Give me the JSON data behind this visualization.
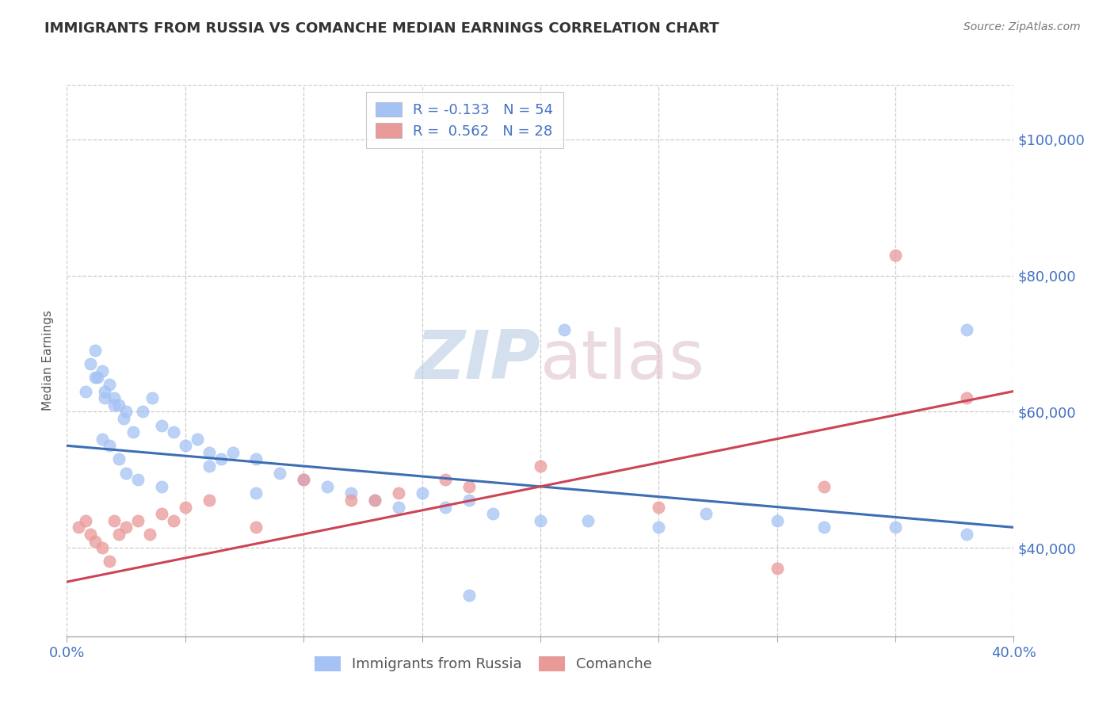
{
  "title": "IMMIGRANTS FROM RUSSIA VS COMANCHE MEDIAN EARNINGS CORRELATION CHART",
  "source": "Source: ZipAtlas.com",
  "ylabel": "Median Earnings",
  "xlim": [
    0.0,
    0.4
  ],
  "ylim": [
    27000,
    108000
  ],
  "yticks": [
    40000,
    60000,
    80000,
    100000
  ],
  "ytick_labels": [
    "$40,000",
    "$60,000",
    "$80,000",
    "$100,000"
  ],
  "xticks": [
    0.0,
    0.05,
    0.1,
    0.15,
    0.2,
    0.25,
    0.3,
    0.35,
    0.4
  ],
  "xtick_labels": [
    "0.0%",
    "",
    "",
    "",
    "",
    "",
    "",
    "",
    "40.0%"
  ],
  "blue_color": "#a4c2f4",
  "blue_line_color": "#3d6eb4",
  "pink_color": "#ea9999",
  "pink_line_color": "#cc4455",
  "legend_blue_label": "Immigrants from Russia",
  "legend_pink_label": "Comanche",
  "R_blue": -0.133,
  "N_blue": 54,
  "R_pink": 0.562,
  "N_pink": 28,
  "label_color": "#4472c4",
  "watermark_zip": "ZIP",
  "watermark_atlas": "atlas",
  "blue_scatter_x": [
    0.008,
    0.012,
    0.015,
    0.018,
    0.02,
    0.022,
    0.025,
    0.01,
    0.013,
    0.016,
    0.02,
    0.024,
    0.028,
    0.032,
    0.036,
    0.04,
    0.045,
    0.05,
    0.055,
    0.06,
    0.065,
    0.07,
    0.08,
    0.09,
    0.1,
    0.11,
    0.12,
    0.13,
    0.14,
    0.15,
    0.16,
    0.17,
    0.18,
    0.2,
    0.22,
    0.25,
    0.27,
    0.3,
    0.32,
    0.35,
    0.38,
    0.015,
    0.018,
    0.022,
    0.025,
    0.012,
    0.016,
    0.03,
    0.04,
    0.06,
    0.08,
    0.21,
    0.17,
    0.38
  ],
  "blue_scatter_y": [
    63000,
    65000,
    66000,
    64000,
    62000,
    61000,
    60000,
    67000,
    65000,
    63000,
    61000,
    59000,
    57000,
    60000,
    62000,
    58000,
    57000,
    55000,
    56000,
    54000,
    53000,
    54000,
    53000,
    51000,
    50000,
    49000,
    48000,
    47000,
    46000,
    48000,
    46000,
    47000,
    45000,
    44000,
    44000,
    43000,
    45000,
    44000,
    43000,
    43000,
    42000,
    56000,
    55000,
    53000,
    51000,
    69000,
    62000,
    50000,
    49000,
    52000,
    48000,
    72000,
    33000,
    72000
  ],
  "pink_scatter_x": [
    0.005,
    0.008,
    0.01,
    0.012,
    0.015,
    0.018,
    0.02,
    0.022,
    0.025,
    0.03,
    0.035,
    0.04,
    0.045,
    0.05,
    0.06,
    0.08,
    0.1,
    0.12,
    0.13,
    0.14,
    0.16,
    0.17,
    0.2,
    0.25,
    0.3,
    0.32,
    0.35,
    0.38
  ],
  "pink_scatter_y": [
    43000,
    44000,
    42000,
    41000,
    40000,
    38000,
    44000,
    42000,
    43000,
    44000,
    42000,
    45000,
    44000,
    46000,
    47000,
    43000,
    50000,
    47000,
    47000,
    48000,
    50000,
    49000,
    52000,
    46000,
    37000,
    49000,
    83000,
    62000
  ],
  "blue_trend_x": [
    0.0,
    0.4
  ],
  "blue_trend_y": [
    55000,
    43000
  ],
  "pink_trend_x": [
    0.0,
    0.4
  ],
  "pink_trend_y": [
    35000,
    63000
  ]
}
